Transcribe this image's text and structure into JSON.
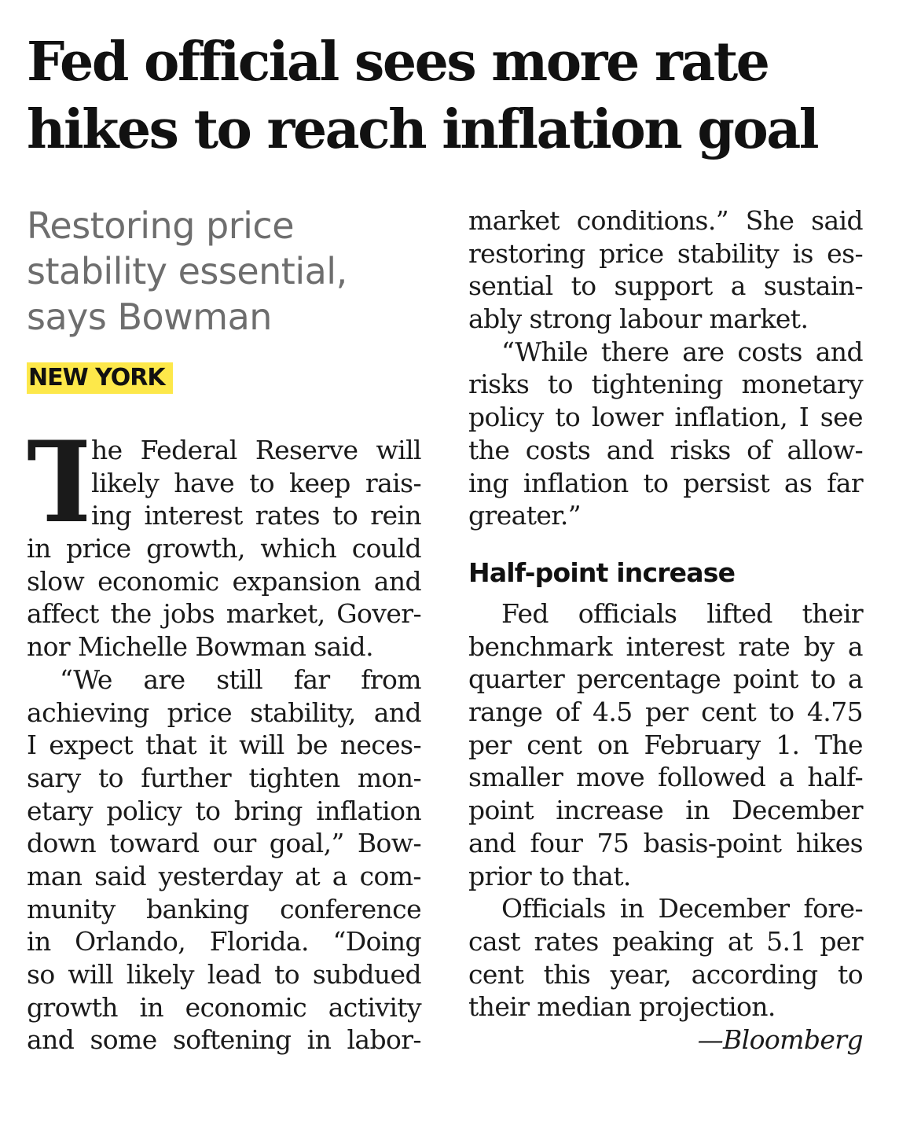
{
  "headline": {
    "line1": "Fed official sees more rate",
    "line2": "hikes to reach inflation goal"
  },
  "standfirst": {
    "line1": "Restoring price",
    "line2": "stability essential,",
    "line3": "says Bowman"
  },
  "dateline": "NEW YORK",
  "dropcap": "T",
  "left_column": [
    "he Federal Reserve will",
    "likely have to keep rais-",
    "ing interest rates to rein",
    "in price growth, which could",
    "slow economic expansion and",
    "affect the jobs market, Gover-",
    "nor Michelle Bowman said.",
    "“We are still far from",
    "achieving price stability, and",
    "I expect that it will be neces-",
    "sary to further tighten mon-",
    "etary policy to bring inflation",
    "down toward our goal,” Bow-",
    "man said yesterday at a com-",
    "munity banking conference",
    "in Orlando, Florida. “Doing",
    "so will likely lead to subdued",
    "growth in economic activity",
    "and some softening in labor-"
  ],
  "right_column_top": [
    "market conditions.” She said",
    "restoring price stability is es-",
    "sential to support a sustain-",
    "ably strong labour market.",
    "“While there are costs and",
    "risks to tightening monetary",
    "policy to lower inflation, I see",
    "the costs and risks of allow-",
    "ing inflation to persist as far",
    "greater.”"
  ],
  "subhead": "Half-point increase",
  "right_column_bottom": [
    "Fed officials lifted their",
    "benchmark interest rate by a",
    "quarter percentage point to a",
    "range of 4.5 per cent to 4.75",
    "per cent on February 1. The",
    "smaller move followed a half-",
    "point increase in December",
    "and four 75 basis-point hikes",
    "prior to that.",
    "Officials in December fore-",
    "cast rates peaking at 5.1 per",
    "cent this year, according to",
    "their median projection."
  ],
  "credit": "—Bloomberg"
}
